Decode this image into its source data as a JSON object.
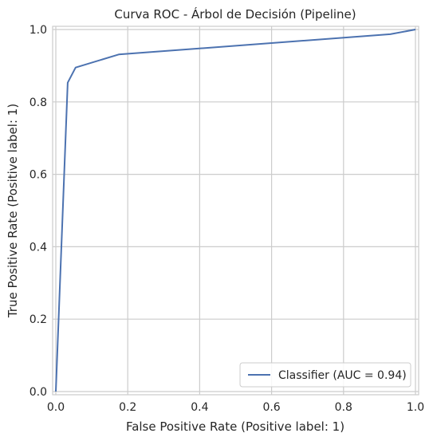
{
  "chart_data": {
    "type": "line",
    "title": "Curva ROC - Árbol de Decisión (Pipeline)",
    "xlabel": "False Positive Rate (Positive label: 1)",
    "ylabel": "True Positive Rate (Positive label: 1)",
    "xlim": [
      0.0,
      1.0
    ],
    "ylim": [
      0.0,
      1.0
    ],
    "xticks": [
      0.0,
      0.2,
      0.4,
      0.6,
      0.8,
      1.0
    ],
    "yticks": [
      0.0,
      0.2,
      0.4,
      0.6,
      0.8,
      1.0
    ],
    "xtick_labels": [
      "0.0",
      "0.2",
      "0.4",
      "0.6",
      "0.8",
      "1.0"
    ],
    "ytick_labels": [
      "0.0",
      "0.2",
      "0.4",
      "0.6",
      "0.8",
      "1.0"
    ],
    "grid": true,
    "legend_position": "lower-right",
    "colors": {
      "series": "#4c72b0",
      "grid": "#cccccc",
      "spine": "#cccccc"
    },
    "series": [
      {
        "name": "Classifier (AUC = 0.94)",
        "x": [
          0.0,
          0.0,
          0.033,
          0.055,
          0.175,
          0.93,
          1.0
        ],
        "y": [
          0.0,
          0.0,
          0.853,
          0.895,
          0.931,
          0.987,
          1.0
        ]
      }
    ]
  }
}
